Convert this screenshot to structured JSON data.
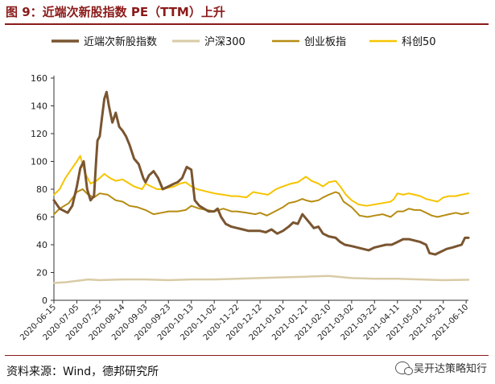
{
  "header": {
    "title": "图 9：近端次新股指数 PE（TTM）上升"
  },
  "footer": {
    "source": "资料来源：Wind，德邦研究所",
    "watermark": "吴开达策略知行"
  },
  "colors": {
    "accent": "#8b1a1a",
    "s1": "#7a5530",
    "s2": "#d8cba6",
    "s3": "#b68c12",
    "s4": "#f6c400"
  },
  "chart_data": {
    "type": "line",
    "title": "",
    "xlabel": "",
    "ylabel": "",
    "ylim": [
      0,
      160
    ],
    "yticks": [
      0,
      20,
      40,
      60,
      80,
      100,
      120,
      140,
      160
    ],
    "x_range": [
      "2020-06-15",
      "2021-06-12"
    ],
    "xticks": [
      "2020-06-15",
      "2020-07-05",
      "2020-07-25",
      "2020-08-14",
      "2020-09-03",
      "2020-09-23",
      "2020-10-13",
      "2020-11-02",
      "2020-11-22",
      "2020-12-12",
      "2021-01-01",
      "2021-01-21",
      "2021-02-10",
      "2021-03-02",
      "2021-03-22",
      "2021-04-11",
      "2021-05-01",
      "2021-05-21",
      "2021-06-10"
    ],
    "legend_position": "top",
    "series": [
      {
        "name": "近端次新股指数",
        "color": "#7a5530",
        "width": 3,
        "points": [
          [
            "2020-06-15",
            72
          ],
          [
            "2020-06-20",
            66
          ],
          [
            "2020-06-27",
            63
          ],
          [
            "2020-07-01",
            68
          ],
          [
            "2020-07-05",
            82
          ],
          [
            "2020-07-08",
            95
          ],
          [
            "2020-07-11",
            100
          ],
          [
            "2020-07-14",
            80
          ],
          [
            "2020-07-17",
            72
          ],
          [
            "2020-07-20",
            75
          ],
          [
            "2020-07-22",
            102
          ],
          [
            "2020-07-23",
            115
          ],
          [
            "2020-07-25",
            118
          ],
          [
            "2020-07-27",
            132
          ],
          [
            "2020-07-29",
            145
          ],
          [
            "2020-07-31",
            150
          ],
          [
            "2020-08-02",
            140
          ],
          [
            "2020-08-05",
            128
          ],
          [
            "2020-08-08",
            135
          ],
          [
            "2020-08-11",
            125
          ],
          [
            "2020-08-14",
            122
          ],
          [
            "2020-08-17",
            118
          ],
          [
            "2020-08-20",
            112
          ],
          [
            "2020-08-24",
            102
          ],
          [
            "2020-08-28",
            98
          ],
          [
            "2020-09-01",
            88
          ],
          [
            "2020-09-03",
            85
          ],
          [
            "2020-09-06",
            90
          ],
          [
            "2020-09-10",
            93
          ],
          [
            "2020-09-14",
            88
          ],
          [
            "2020-09-18",
            80
          ],
          [
            "2020-09-23",
            82
          ],
          [
            "2020-09-28",
            84
          ],
          [
            "2020-10-01",
            85
          ],
          [
            "2020-10-05",
            88
          ],
          [
            "2020-10-09",
            96
          ],
          [
            "2020-10-13",
            94
          ],
          [
            "2020-10-16",
            72
          ],
          [
            "2020-10-20",
            68
          ],
          [
            "2020-10-24",
            66
          ],
          [
            "2020-10-28",
            64
          ],
          [
            "2020-11-02",
            64
          ],
          [
            "2020-11-05",
            66
          ],
          [
            "2020-11-08",
            60
          ],
          [
            "2020-11-12",
            55
          ],
          [
            "2020-11-17",
            53
          ],
          [
            "2020-11-22",
            52
          ],
          [
            "2020-11-27",
            51
          ],
          [
            "2020-12-02",
            50
          ],
          [
            "2020-12-07",
            50
          ],
          [
            "2020-12-12",
            50
          ],
          [
            "2020-12-17",
            49
          ],
          [
            "2020-12-22",
            51
          ],
          [
            "2020-12-27",
            48
          ],
          [
            "2021-01-01",
            50
          ],
          [
            "2021-01-06",
            53
          ],
          [
            "2021-01-10",
            56
          ],
          [
            "2021-01-14",
            55
          ],
          [
            "2021-01-18",
            62
          ],
          [
            "2021-01-21",
            59
          ],
          [
            "2021-01-25",
            55
          ],
          [
            "2021-01-28",
            52
          ],
          [
            "2021-02-01",
            53
          ],
          [
            "2021-02-05",
            48
          ],
          [
            "2021-02-10",
            46
          ],
          [
            "2021-02-16",
            45
          ],
          [
            "2021-02-20",
            42
          ],
          [
            "2021-02-24",
            40
          ],
          [
            "2021-03-02",
            39
          ],
          [
            "2021-03-07",
            38
          ],
          [
            "2021-03-12",
            37
          ],
          [
            "2021-03-17",
            36
          ],
          [
            "2021-03-22",
            38
          ],
          [
            "2021-03-27",
            39
          ],
          [
            "2021-04-01",
            40
          ],
          [
            "2021-04-06",
            40
          ],
          [
            "2021-04-11",
            42
          ],
          [
            "2021-04-16",
            44
          ],
          [
            "2021-04-21",
            44
          ],
          [
            "2021-04-26",
            43
          ],
          [
            "2021-05-01",
            42
          ],
          [
            "2021-05-06",
            40
          ],
          [
            "2021-05-09",
            34
          ],
          [
            "2021-05-14",
            33
          ],
          [
            "2021-05-19",
            35
          ],
          [
            "2021-05-24",
            37
          ],
          [
            "2021-05-29",
            38
          ],
          [
            "2021-06-02",
            39
          ],
          [
            "2021-06-06",
            40
          ],
          [
            "2021-06-09",
            45
          ],
          [
            "2021-06-12",
            45
          ]
        ]
      },
      {
        "name": "沪深300",
        "color": "#d8cba6",
        "width": 2.5,
        "points": [
          [
            "2020-06-15",
            12.5
          ],
          [
            "2020-06-25",
            13
          ],
          [
            "2020-07-05",
            14
          ],
          [
            "2020-07-15",
            15
          ],
          [
            "2020-07-25",
            14.5
          ],
          [
            "2020-08-14",
            15
          ],
          [
            "2020-09-03",
            15
          ],
          [
            "2020-09-23",
            14.5
          ],
          [
            "2020-10-13",
            15
          ],
          [
            "2020-11-02",
            15
          ],
          [
            "2020-11-22",
            15.5
          ],
          [
            "2020-12-12",
            16
          ],
          [
            "2021-01-01",
            16.5
          ],
          [
            "2021-01-21",
            17
          ],
          [
            "2021-02-10",
            17.5
          ],
          [
            "2021-03-02",
            16
          ],
          [
            "2021-03-22",
            15.5
          ],
          [
            "2021-04-11",
            15.5
          ],
          [
            "2021-05-01",
            15
          ],
          [
            "2021-05-21",
            14.5
          ],
          [
            "2021-06-12",
            14.8
          ]
        ]
      },
      {
        "name": "创业板指",
        "color": "#b68c12",
        "width": 2,
        "points": [
          [
            "2020-06-15",
            62
          ],
          [
            "2020-06-20",
            66
          ],
          [
            "2020-06-28",
            70
          ],
          [
            "2020-07-05",
            78
          ],
          [
            "2020-07-10",
            80
          ],
          [
            "2020-07-15",
            76
          ],
          [
            "2020-07-20",
            74
          ],
          [
            "2020-07-25",
            77
          ],
          [
            "2020-08-01",
            76
          ],
          [
            "2020-08-08",
            72
          ],
          [
            "2020-08-14",
            71
          ],
          [
            "2020-08-20",
            68
          ],
          [
            "2020-08-27",
            67
          ],
          [
            "2020-09-03",
            65
          ],
          [
            "2020-09-10",
            62
          ],
          [
            "2020-09-17",
            63
          ],
          [
            "2020-09-23",
            64
          ],
          [
            "2020-10-01",
            64
          ],
          [
            "2020-10-08",
            65
          ],
          [
            "2020-10-13",
            68
          ],
          [
            "2020-10-20",
            66
          ],
          [
            "2020-10-27",
            65
          ],
          [
            "2020-11-02",
            64
          ],
          [
            "2020-11-10",
            66
          ],
          [
            "2020-11-17",
            64
          ],
          [
            "2020-11-22",
            64
          ],
          [
            "2020-11-30",
            63
          ],
          [
            "2020-12-08",
            62
          ],
          [
            "2020-12-12",
            63
          ],
          [
            "2020-12-18",
            61
          ],
          [
            "2020-12-25",
            64
          ],
          [
            "2021-01-01",
            67
          ],
          [
            "2021-01-06",
            70
          ],
          [
            "2021-01-12",
            71
          ],
          [
            "2021-01-18",
            73
          ],
          [
            "2021-01-21",
            72
          ],
          [
            "2021-01-26",
            71
          ],
          [
            "2021-02-01",
            72
          ],
          [
            "2021-02-05",
            74
          ],
          [
            "2021-02-10",
            76
          ],
          [
            "2021-02-16",
            78
          ],
          [
            "2021-02-19",
            77
          ],
          [
            "2021-02-23",
            71
          ],
          [
            "2021-03-02",
            67
          ],
          [
            "2021-03-09",
            61
          ],
          [
            "2021-03-16",
            60
          ],
          [
            "2021-03-22",
            61
          ],
          [
            "2021-03-29",
            62
          ],
          [
            "2021-04-05",
            60
          ],
          [
            "2021-04-11",
            64
          ],
          [
            "2021-04-16",
            64
          ],
          [
            "2021-04-21",
            66
          ],
          [
            "2021-04-26",
            65
          ],
          [
            "2021-05-01",
            65
          ],
          [
            "2021-05-06",
            63
          ],
          [
            "2021-05-11",
            61
          ],
          [
            "2021-05-16",
            60
          ],
          [
            "2021-05-21",
            61
          ],
          [
            "2021-05-26",
            62
          ],
          [
            "2021-06-01",
            63
          ],
          [
            "2021-06-06",
            62
          ],
          [
            "2021-06-12",
            63
          ]
        ]
      },
      {
        "name": "科创50",
        "color": "#f6c400",
        "width": 2,
        "points": [
          [
            "2020-06-15",
            76
          ],
          [
            "2020-06-20",
            80
          ],
          [
            "2020-06-25",
            88
          ],
          [
            "2020-06-30",
            94
          ],
          [
            "2020-07-05",
            100
          ],
          [
            "2020-07-08",
            104
          ],
          [
            "2020-07-12",
            92
          ],
          [
            "2020-07-17",
            84
          ],
          [
            "2020-07-22",
            86
          ],
          [
            "2020-07-25",
            88
          ],
          [
            "2020-07-29",
            91
          ],
          [
            "2020-08-03",
            88
          ],
          [
            "2020-08-08",
            86
          ],
          [
            "2020-08-14",
            87
          ],
          [
            "2020-08-18",
            85
          ],
          [
            "2020-08-24",
            82
          ],
          [
            "2020-08-31",
            80
          ],
          [
            "2020-09-03",
            84
          ],
          [
            "2020-09-08",
            82
          ],
          [
            "2020-09-13",
            80
          ],
          [
            "2020-09-18",
            80
          ],
          [
            "2020-09-23",
            81
          ],
          [
            "2020-09-28",
            82
          ],
          [
            "2020-10-03",
            84
          ],
          [
            "2020-10-08",
            85
          ],
          [
            "2020-10-13",
            82
          ],
          [
            "2020-10-18",
            80
          ],
          [
            "2020-10-23",
            79
          ],
          [
            "2020-10-28",
            78
          ],
          [
            "2020-11-02",
            77
          ],
          [
            "2020-11-10",
            76
          ],
          [
            "2020-11-17",
            75
          ],
          [
            "2020-11-22",
            75
          ],
          [
            "2020-11-30",
            74
          ],
          [
            "2020-12-06",
            78
          ],
          [
            "2020-12-12",
            77
          ],
          [
            "2020-12-19",
            76
          ],
          [
            "2020-12-26",
            80
          ],
          [
            "2021-01-01",
            82
          ],
          [
            "2021-01-08",
            84
          ],
          [
            "2021-01-14",
            85
          ],
          [
            "2021-01-21",
            89
          ],
          [
            "2021-01-26",
            86
          ],
          [
            "2021-02-01",
            84
          ],
          [
            "2021-02-05",
            82
          ],
          [
            "2021-02-10",
            85
          ],
          [
            "2021-02-16",
            86
          ],
          [
            "2021-02-20",
            82
          ],
          [
            "2021-02-25",
            76
          ],
          [
            "2021-03-02",
            72
          ],
          [
            "2021-03-08",
            69
          ],
          [
            "2021-03-15",
            68
          ],
          [
            "2021-03-22",
            69
          ],
          [
            "2021-03-29",
            70
          ],
          [
            "2021-04-05",
            71
          ],
          [
            "2021-04-08",
            73
          ],
          [
            "2021-04-11",
            77
          ],
          [
            "2021-04-16",
            76
          ],
          [
            "2021-04-21",
            77
          ],
          [
            "2021-04-26",
            76
          ],
          [
            "2021-05-01",
            75
          ],
          [
            "2021-05-06",
            73
          ],
          [
            "2021-05-11",
            72
          ],
          [
            "2021-05-16",
            71
          ],
          [
            "2021-05-21",
            74
          ],
          [
            "2021-05-26",
            75
          ],
          [
            "2021-06-01",
            75
          ],
          [
            "2021-06-06",
            76
          ],
          [
            "2021-06-12",
            77
          ]
        ]
      }
    ]
  }
}
